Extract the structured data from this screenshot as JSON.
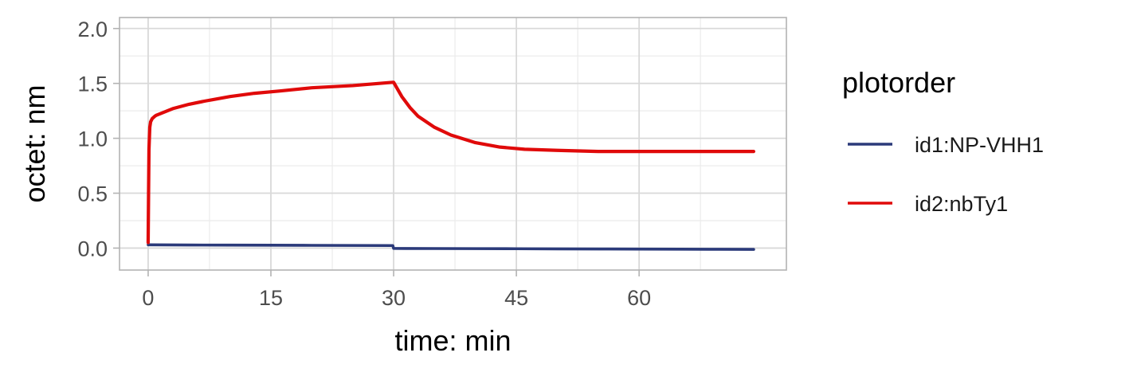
{
  "chart_data": {
    "type": "line",
    "title": "",
    "xlabel": "time: min",
    "ylabel": "octet: nm",
    "xlim": [
      -3.5,
      78
    ],
    "ylim": [
      -0.2,
      2.1
    ],
    "x_ticks": [
      0,
      15,
      30,
      45,
      60
    ],
    "x_minor_ticks": [
      7.5,
      22.5,
      37.5,
      52.5,
      67.5
    ],
    "y_ticks": [
      0.0,
      0.5,
      1.0,
      1.5,
      2.0
    ],
    "y_tick_labels": [
      "0.0",
      "0.5",
      "1.0",
      "1.5",
      "2.0"
    ],
    "y_minor_ticks": [
      -0.25,
      0.25,
      0.75,
      1.25,
      1.75
    ],
    "grid": true,
    "legend": {
      "title": "plotorder",
      "position": "right"
    },
    "series": [
      {
        "name": "id1:NP-VHH1",
        "color": "#2B3A7A",
        "x": [
          0,
          5,
          10,
          15,
          20,
          25,
          29.9,
          30.0,
          35,
          40,
          45,
          50,
          55,
          60,
          65,
          70,
          74
        ],
        "y": [
          0.03,
          0.028,
          0.027,
          0.026,
          0.025,
          0.024,
          0.023,
          -0.003,
          -0.004,
          -0.005,
          -0.006,
          -0.007,
          -0.008,
          -0.009,
          -0.01,
          -0.011,
          -0.012
        ]
      },
      {
        "name": "id2:nbTy1",
        "color": "#E00A0A",
        "x": [
          0,
          0.05,
          0.1,
          0.2,
          0.3,
          0.5,
          0.8,
          1,
          2,
          3,
          5,
          7,
          10,
          13,
          16,
          20,
          25,
          29.9,
          30.0,
          31,
          32,
          33,
          35,
          37,
          40,
          43,
          46,
          50,
          55,
          60,
          65,
          70,
          74
        ],
        "y": [
          0.05,
          0.5,
          0.9,
          1.1,
          1.15,
          1.18,
          1.2,
          1.21,
          1.24,
          1.27,
          1.31,
          1.34,
          1.38,
          1.41,
          1.43,
          1.46,
          1.48,
          1.51,
          1.51,
          1.38,
          1.28,
          1.2,
          1.1,
          1.03,
          0.96,
          0.92,
          0.9,
          0.89,
          0.88,
          0.88,
          0.88,
          0.88,
          0.88
        ]
      }
    ]
  }
}
